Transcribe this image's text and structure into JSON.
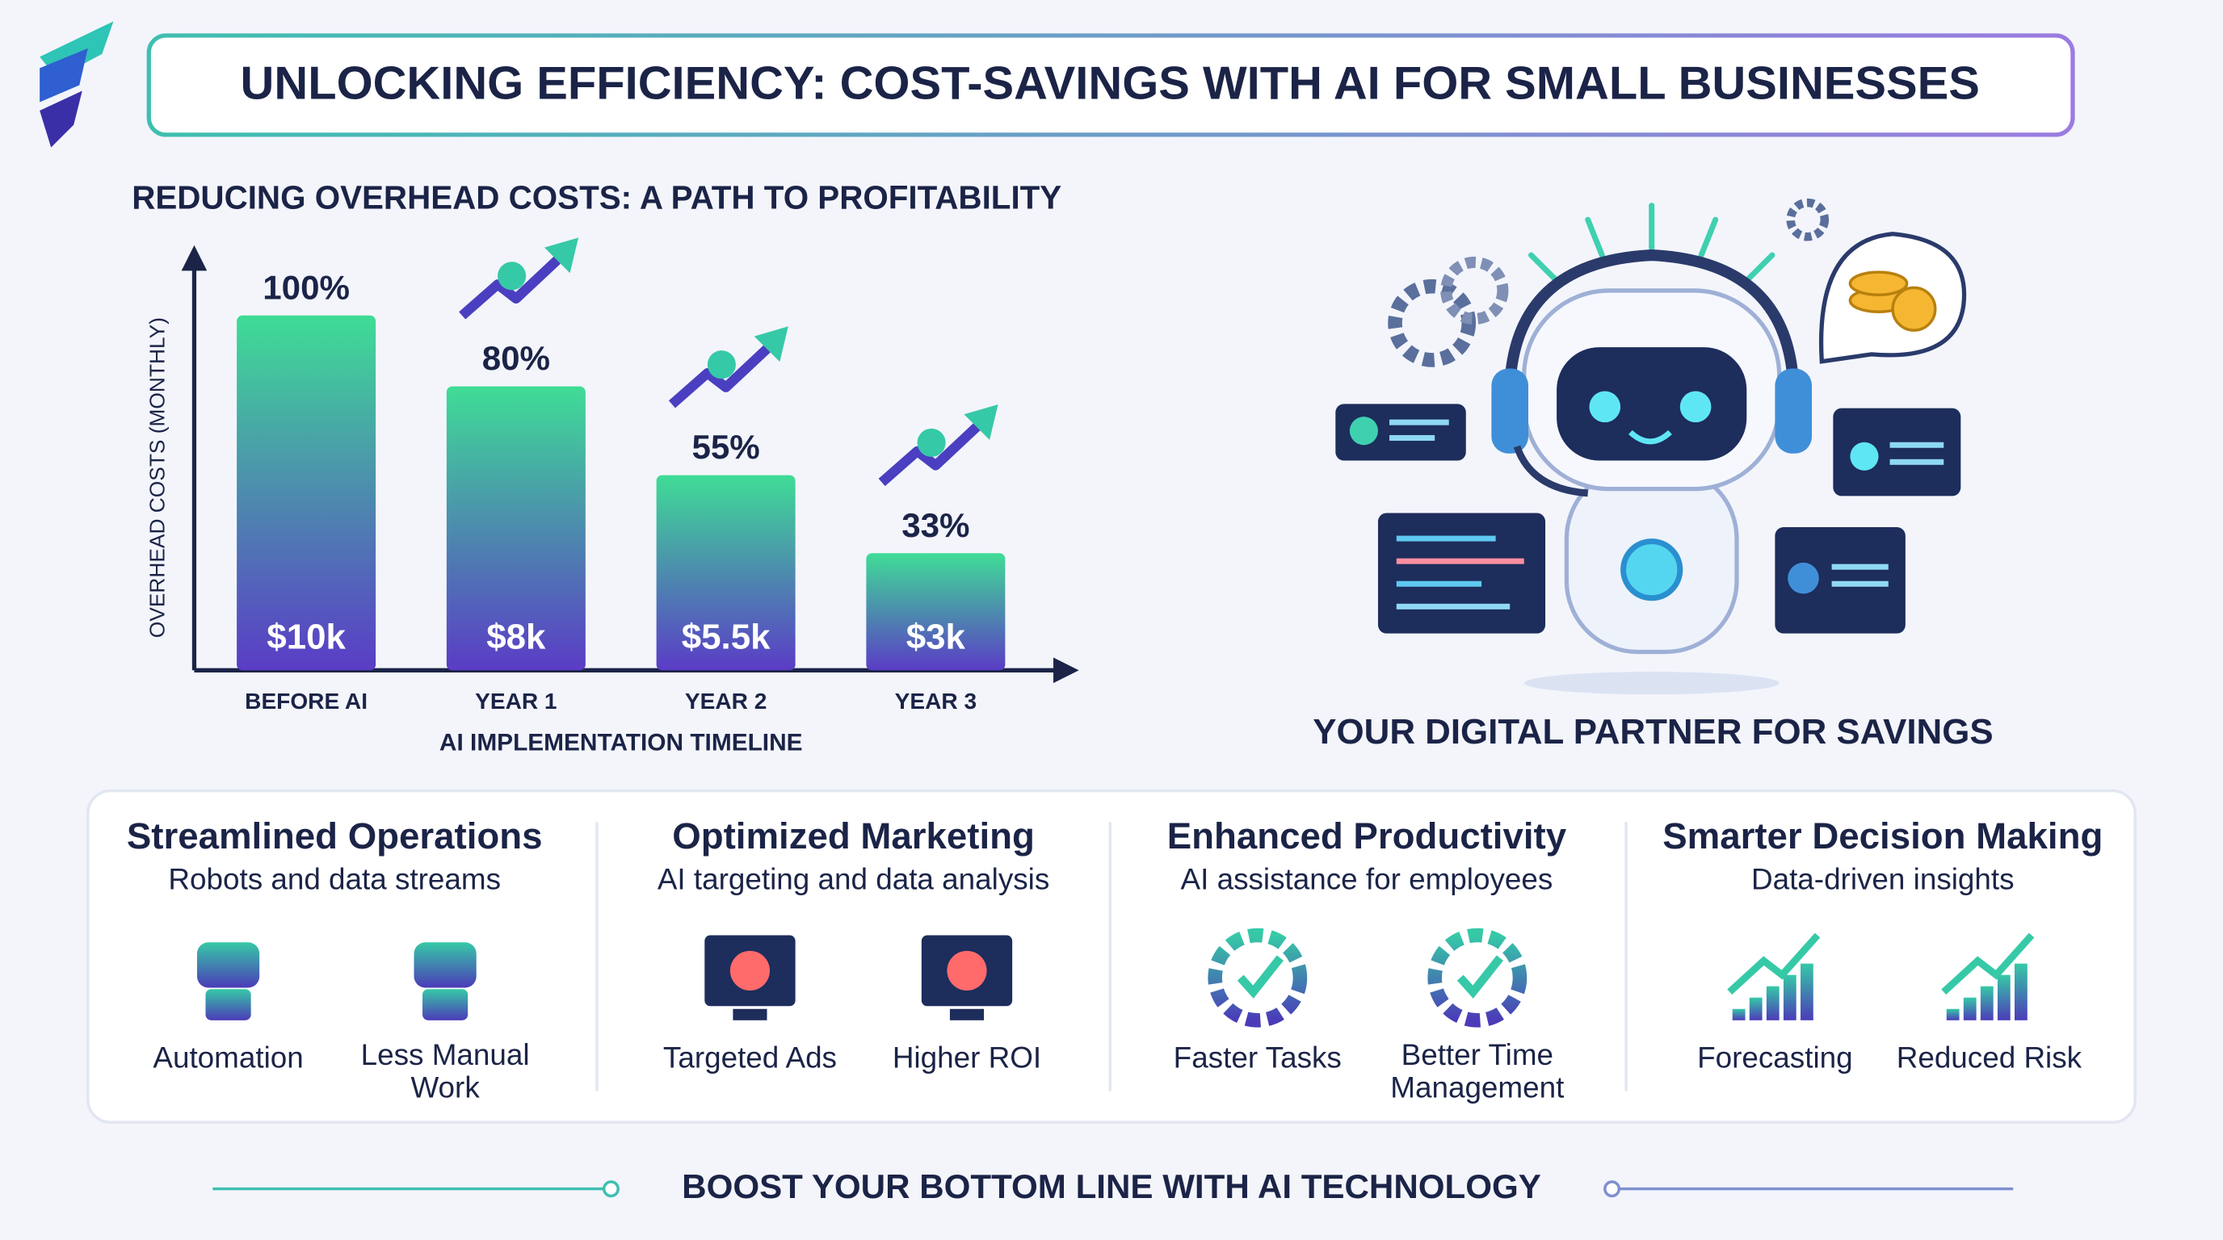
{
  "title": "UNLOCKING EFFICIENCY: COST-SAVINGS WITH AI FOR SMALL BUSINESSES",
  "chart_data": {
    "type": "bar",
    "title": "REDUCING OVERHEAD COSTS: A PATH TO PROFITABILITY",
    "x_label": "AI IMPLEMENTATION TIMELINE",
    "y_label": "OVERHEAD COSTS (MONTHLY)",
    "categories": [
      "BEFORE AI",
      "YEAR 1",
      "YEAR 2",
      "YEAR 3"
    ],
    "values": [
      100,
      80,
      55,
      33
    ],
    "value_labels": [
      "100%",
      "80%",
      "55%",
      "33%"
    ],
    "inner_labels": [
      "$10k",
      "$8k",
      "$5.5k",
      "$3k"
    ],
    "ylim": [
      0,
      117
    ],
    "colors": [
      "#3fdc96",
      "#5a3cc6"
    ]
  },
  "illustration_caption": "YOUR DIGITAL PARTNER FOR SAVINGS",
  "features": [
    {
      "title": "Streamlined Operations",
      "subtitle": "Robots and data streams",
      "items": [
        {
          "label": [
            "Automation"
          ]
        },
        {
          "label": [
            "Less Manual",
            "Work"
          ]
        }
      ]
    },
    {
      "title": "Optimized Marketing",
      "subtitle": "AI targeting and data analysis",
      "items": [
        {
          "label": [
            "Targeted Ads"
          ]
        },
        {
          "label": [
            "Higher ROI"
          ]
        }
      ]
    },
    {
      "title": "Enhanced Productivity",
      "subtitle": "AI assistance for employees",
      "items": [
        {
          "label": [
            "Faster Tasks"
          ]
        },
        {
          "label": [
            "Better Time",
            "Management"
          ]
        }
      ]
    },
    {
      "title": "Smarter Decision Making",
      "subtitle": "Data-driven insights",
      "items": [
        {
          "label": [
            "Forecasting"
          ]
        },
        {
          "label": [
            "Reduced Risk"
          ]
        }
      ]
    }
  ],
  "footer": "BOOST YOUR BOTTOM LINE WITH AI TECHNOLOGY"
}
